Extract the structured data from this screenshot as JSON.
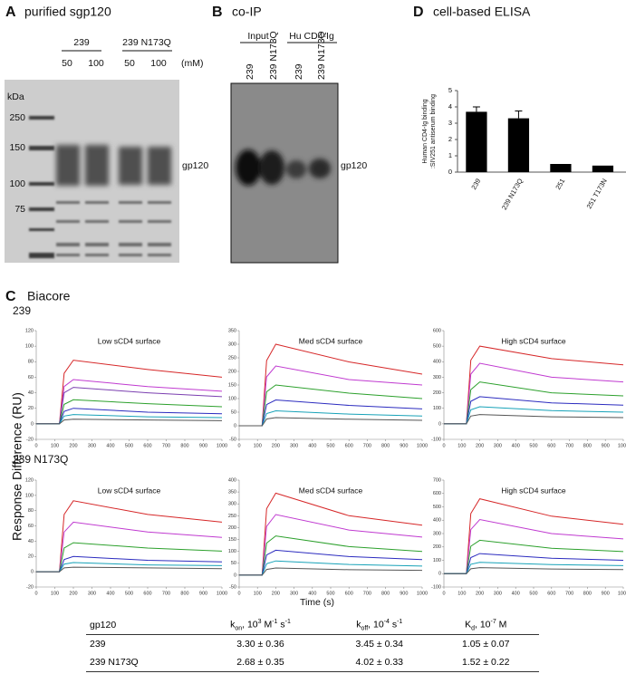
{
  "panel_a": {
    "letter": "A",
    "title": "purified sgp120",
    "groups": [
      "239",
      "239 N173Q"
    ],
    "lanes": [
      50,
      100,
      50,
      100
    ],
    "unit": "(mM)",
    "ladder_unit": "kDa",
    "ladder": [
      250,
      150,
      100,
      75
    ],
    "band_label": "gp120"
  },
  "panel_b": {
    "letter": "B",
    "title": "co-IP",
    "groups": [
      "Input",
      "Hu CD4-Ig"
    ],
    "lanes": [
      "239",
      "239 N173Q",
      "239",
      "239 N173Q"
    ],
    "band_label": "gp120"
  },
  "panel_d": {
    "letter": "D",
    "title": "cell-based ELISA",
    "chart": {
      "type": "bar",
      "y_label": [
        "Human CD4-Ig binding",
        ":SIV251 antiserum binding"
      ],
      "categories": [
        "239",
        "239 N173Q",
        "251",
        "251 T173N"
      ],
      "values": [
        3.7,
        3.3,
        0.5,
        0.4
      ],
      "errors": [
        0.3,
        0.45,
        null,
        null
      ],
      "color": "#000000",
      "ylim": [
        0,
        5
      ],
      "yticks": [
        0,
        1,
        2,
        3,
        4,
        5
      ]
    }
  },
  "panel_c": {
    "letter": "C",
    "title": "Biacore",
    "y_label": "Response Difference (RU)",
    "x_label": "Time (s)",
    "x": [
      0,
      125,
      150,
      200,
      600,
      1000
    ],
    "xlim": [
      0,
      1000
    ],
    "xticks": [
      0,
      100,
      200,
      300,
      400,
      500,
      600,
      700,
      800,
      900,
      1000
    ],
    "rows": [
      {
        "label": "239",
        "panels": [
          {
            "type": "line",
            "title": "Low sCD4 surface",
            "ylim": [
              -20,
              120
            ],
            "yticks": [
              -20,
              0,
              20,
              40,
              60,
              80,
              100,
              120
            ],
            "series": [
              {
                "color": "#d62728",
                "values": [
                  0,
                  0,
                  65,
                  82,
                  70,
                  60
                ]
              },
              {
                "color": "#c03ad0",
                "values": [
                  0,
                  0,
                  48,
                  57,
                  48,
                  42
                ]
              },
              {
                "color": "#7b3fb0",
                "values": [
                  0,
                  0,
                  40,
                  47,
                  40,
                  35
                ]
              },
              {
                "color": "#2ca02c",
                "values": [
                  0,
                  0,
                  25,
                  31,
                  26,
                  22
                ]
              },
              {
                "color": "#2b2bbf",
                "values": [
                  0,
                  0,
                  16,
                  20,
                  15,
                  13
                ]
              },
              {
                "color": "#17a2b8",
                "values": [
                  0,
                  0,
                  10,
                  12,
                  9,
                  8
                ]
              },
              {
                "color": "#555555",
                "values": [
                  0,
                  0,
                  5,
                  6,
                  5,
                  4
                ]
              }
            ]
          },
          {
            "type": "line",
            "title": "Med sCD4 surface",
            "ylim": [
              -50,
              350
            ],
            "yticks": [
              -50,
              0,
              50,
              100,
              150,
              200,
              250,
              300,
              350
            ],
            "series": [
              {
                "color": "#d62728",
                "values": [
                  0,
                  0,
                  240,
                  300,
                  235,
                  190
                ]
              },
              {
                "color": "#c03ad0",
                "values": [
                  0,
                  0,
                  180,
                  220,
                  170,
                  150
                ]
              },
              {
                "color": "#2ca02c",
                "values": [
                  0,
                  0,
                  125,
                  150,
                  120,
                  100
                ]
              },
              {
                "color": "#2b2bbf",
                "values": [
                  0,
                  0,
                  78,
                  95,
                  75,
                  62
                ]
              },
              {
                "color": "#17a2b8",
                "values": [
                  0,
                  0,
                  45,
                  55,
                  43,
                  36
                ]
              },
              {
                "color": "#555555",
                "values": [
                  0,
                  0,
                  25,
                  30,
                  24,
                  20
                ]
              }
            ]
          },
          {
            "type": "line",
            "title": "High sCD4 surface",
            "ylim": [
              -100,
              600
            ],
            "yticks": [
              -100,
              0,
              100,
              200,
              300,
              400,
              500,
              600
            ],
            "series": [
              {
                "color": "#d62728",
                "values": [
                  0,
                  0,
                  410,
                  500,
                  420,
                  380
                ]
              },
              {
                "color": "#c03ad0",
                "values": [
                  0,
                  0,
                  320,
                  390,
                  300,
                  270
                ]
              },
              {
                "color": "#2ca02c",
                "values": [
                  0,
                  0,
                  220,
                  270,
                  200,
                  180
                ]
              },
              {
                "color": "#2b2bbf",
                "values": [
                  0,
                  0,
                  145,
                  175,
                  135,
                  120
                ]
              },
              {
                "color": "#17a2b8",
                "values": [
                  0,
                  0,
                  90,
                  110,
                  85,
                  75
                ]
              },
              {
                "color": "#555555",
                "values": [
                  0,
                  0,
                  50,
                  60,
                  45,
                  40
                ]
              }
            ]
          }
        ]
      },
      {
        "label": "239 N173Q",
        "panels": [
          {
            "type": "line",
            "title": "Low sCD4 surface",
            "ylim": [
              -20,
              120
            ],
            "yticks": [
              -20,
              0,
              20,
              40,
              60,
              80,
              100,
              120
            ],
            "series": [
              {
                "color": "#d62728",
                "values": [
                  0,
                  0,
                  75,
                  93,
                  75,
                  65
                ]
              },
              {
                "color": "#c03ad0",
                "values": [
                  0,
                  0,
                  52,
                  65,
                  52,
                  45
                ]
              },
              {
                "color": "#2ca02c",
                "values": [
                  0,
                  0,
                  31,
                  38,
                  31,
                  27
                ]
              },
              {
                "color": "#2b2bbf",
                "values": [
                  0,
                  0,
                  16,
                  20,
                  15,
                  13
                ]
              },
              {
                "color": "#17a2b8",
                "values": [
                  0,
                  0,
                  10,
                  12,
                  9,
                  8
                ]
              },
              {
                "color": "#555555",
                "values": [
                  0,
                  0,
                  5,
                  6,
                  5,
                  4
                ]
              }
            ]
          },
          {
            "type": "line",
            "title": "Med sCD4 surface",
            "ylim": [
              -50,
              400
            ],
            "yticks": [
              -50,
              0,
              50,
              100,
              150,
              200,
              250,
              300,
              350,
              400
            ],
            "series": [
              {
                "color": "#d62728",
                "values": [
                  0,
                  0,
                  280,
                  345,
                  250,
                  210
                ]
              },
              {
                "color": "#c03ad0",
                "values": [
                  0,
                  0,
                  205,
                  255,
                  190,
                  160
                ]
              },
              {
                "color": "#2ca02c",
                "values": [
                  0,
                  0,
                  135,
                  165,
                  120,
                  100
                ]
              },
              {
                "color": "#2b2bbf",
                "values": [
                  0,
                  0,
                  85,
                  105,
                  78,
                  65
                ]
              },
              {
                "color": "#17a2b8",
                "values": [
                  0,
                  0,
                  48,
                  60,
                  45,
                  38
                ]
              },
              {
                "color": "#555555",
                "values": [
                  0,
                  0,
                  24,
                  30,
                  23,
                  20
                ]
              }
            ]
          },
          {
            "type": "line",
            "title": "High sCD4 surface",
            "ylim": [
              -100,
              700
            ],
            "yticks": [
              -100,
              0,
              100,
              200,
              300,
              400,
              500,
              600,
              700
            ],
            "series": [
              {
                "color": "#d62728",
                "values": [
                  0,
                  0,
                  450,
                  560,
                  430,
                  370
                ]
              },
              {
                "color": "#c03ad0",
                "values": [
                  0,
                  0,
                  330,
                  405,
                  300,
                  260
                ]
              },
              {
                "color": "#2ca02c",
                "values": [
                  0,
                  0,
                  205,
                  250,
                  190,
                  165
                ]
              },
              {
                "color": "#2b2bbf",
                "values": [
                  0,
                  0,
                  120,
                  150,
                  115,
                  100
                ]
              },
              {
                "color": "#17a2b8",
                "values": [
                  0,
                  0,
                  70,
                  85,
                  68,
                  60
                ]
              },
              {
                "color": "#555555",
                "values": [
                  0,
                  0,
                  36,
                  45,
                  35,
                  30
                ]
              }
            ]
          }
        ]
      }
    ]
  },
  "table": {
    "header": [
      [
        "gp120"
      ],
      [
        "k",
        "on",
        ", 10",
        "3",
        " M",
        "-1",
        " s",
        "-1"
      ],
      [
        "k",
        "off",
        ", 10",
        "-4",
        " s",
        "-1"
      ],
      [
        "K",
        "d",
        ", 10",
        "-7",
        " M"
      ]
    ],
    "rows": [
      [
        "239",
        "3.30 ± 0.36",
        "3.45 ± 0.34",
        "1.05 ± 0.07"
      ],
      [
        "239 N173Q",
        "2.68 ± 0.35",
        "4.02 ± 0.33",
        "1.52 ± 0.22"
      ]
    ]
  }
}
